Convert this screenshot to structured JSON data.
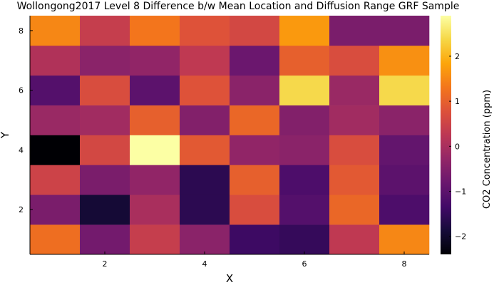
{
  "chart_data": {
    "type": "heatmap",
    "title": "Wollongong2017 Level 8 Difference b/w Mean Location and Diffusion Range GRF Sample",
    "xlabel": "X",
    "ylabel": "Y",
    "colorbar_label": "CO2 Concentration (ppm)",
    "colormap": "inferno",
    "x_range": [
      0.5,
      8.5
    ],
    "y_range": [
      0.5,
      8.5
    ],
    "x_ticks": [
      2,
      4,
      6,
      8
    ],
    "y_ticks": [
      2,
      4,
      6,
      8
    ],
    "clim": [
      -2.4,
      2.9
    ],
    "colorbar_ticks": [
      -2,
      -1,
      0,
      1,
      2
    ],
    "colorbar_tick_labels": [
      "−2",
      "−1",
      "0",
      "1",
      "2"
    ],
    "x": [
      1,
      2,
      3,
      4,
      5,
      6,
      7,
      8
    ],
    "y": [
      1,
      2,
      3,
      4,
      5,
      6,
      7,
      8
    ],
    "values": [
      [
        1.2,
        -0.7,
        0.4,
        -0.4,
        -1.4,
        -1.5,
        0.3,
        1.5
      ],
      [
        -0.6,
        -1.9,
        0.0,
        -1.6,
        0.7,
        -1.1,
        1.1,
        -1.2
      ],
      [
        0.5,
        -0.6,
        -0.3,
        -1.6,
        1.0,
        -1.2,
        0.9,
        -1.0
      ],
      [
        -2.4,
        0.6,
        2.9,
        0.9,
        -0.3,
        -0.4,
        0.7,
        -0.9
      ],
      [
        -0.2,
        -0.1,
        1.0,
        -0.5,
        1.1,
        -0.5,
        -0.1,
        -0.4
      ],
      [
        -1.1,
        0.7,
        -1.0,
        0.8,
        -0.4,
        2.4,
        -0.2,
        2.4
      ],
      [
        0.1,
        -0.4,
        -0.3,
        0.3,
        -0.8,
        1.0,
        0.7,
        1.6
      ],
      [
        1.5,
        0.4,
        1.3,
        0.8,
        0.6,
        1.7,
        -0.6,
        -0.6
      ]
    ]
  }
}
